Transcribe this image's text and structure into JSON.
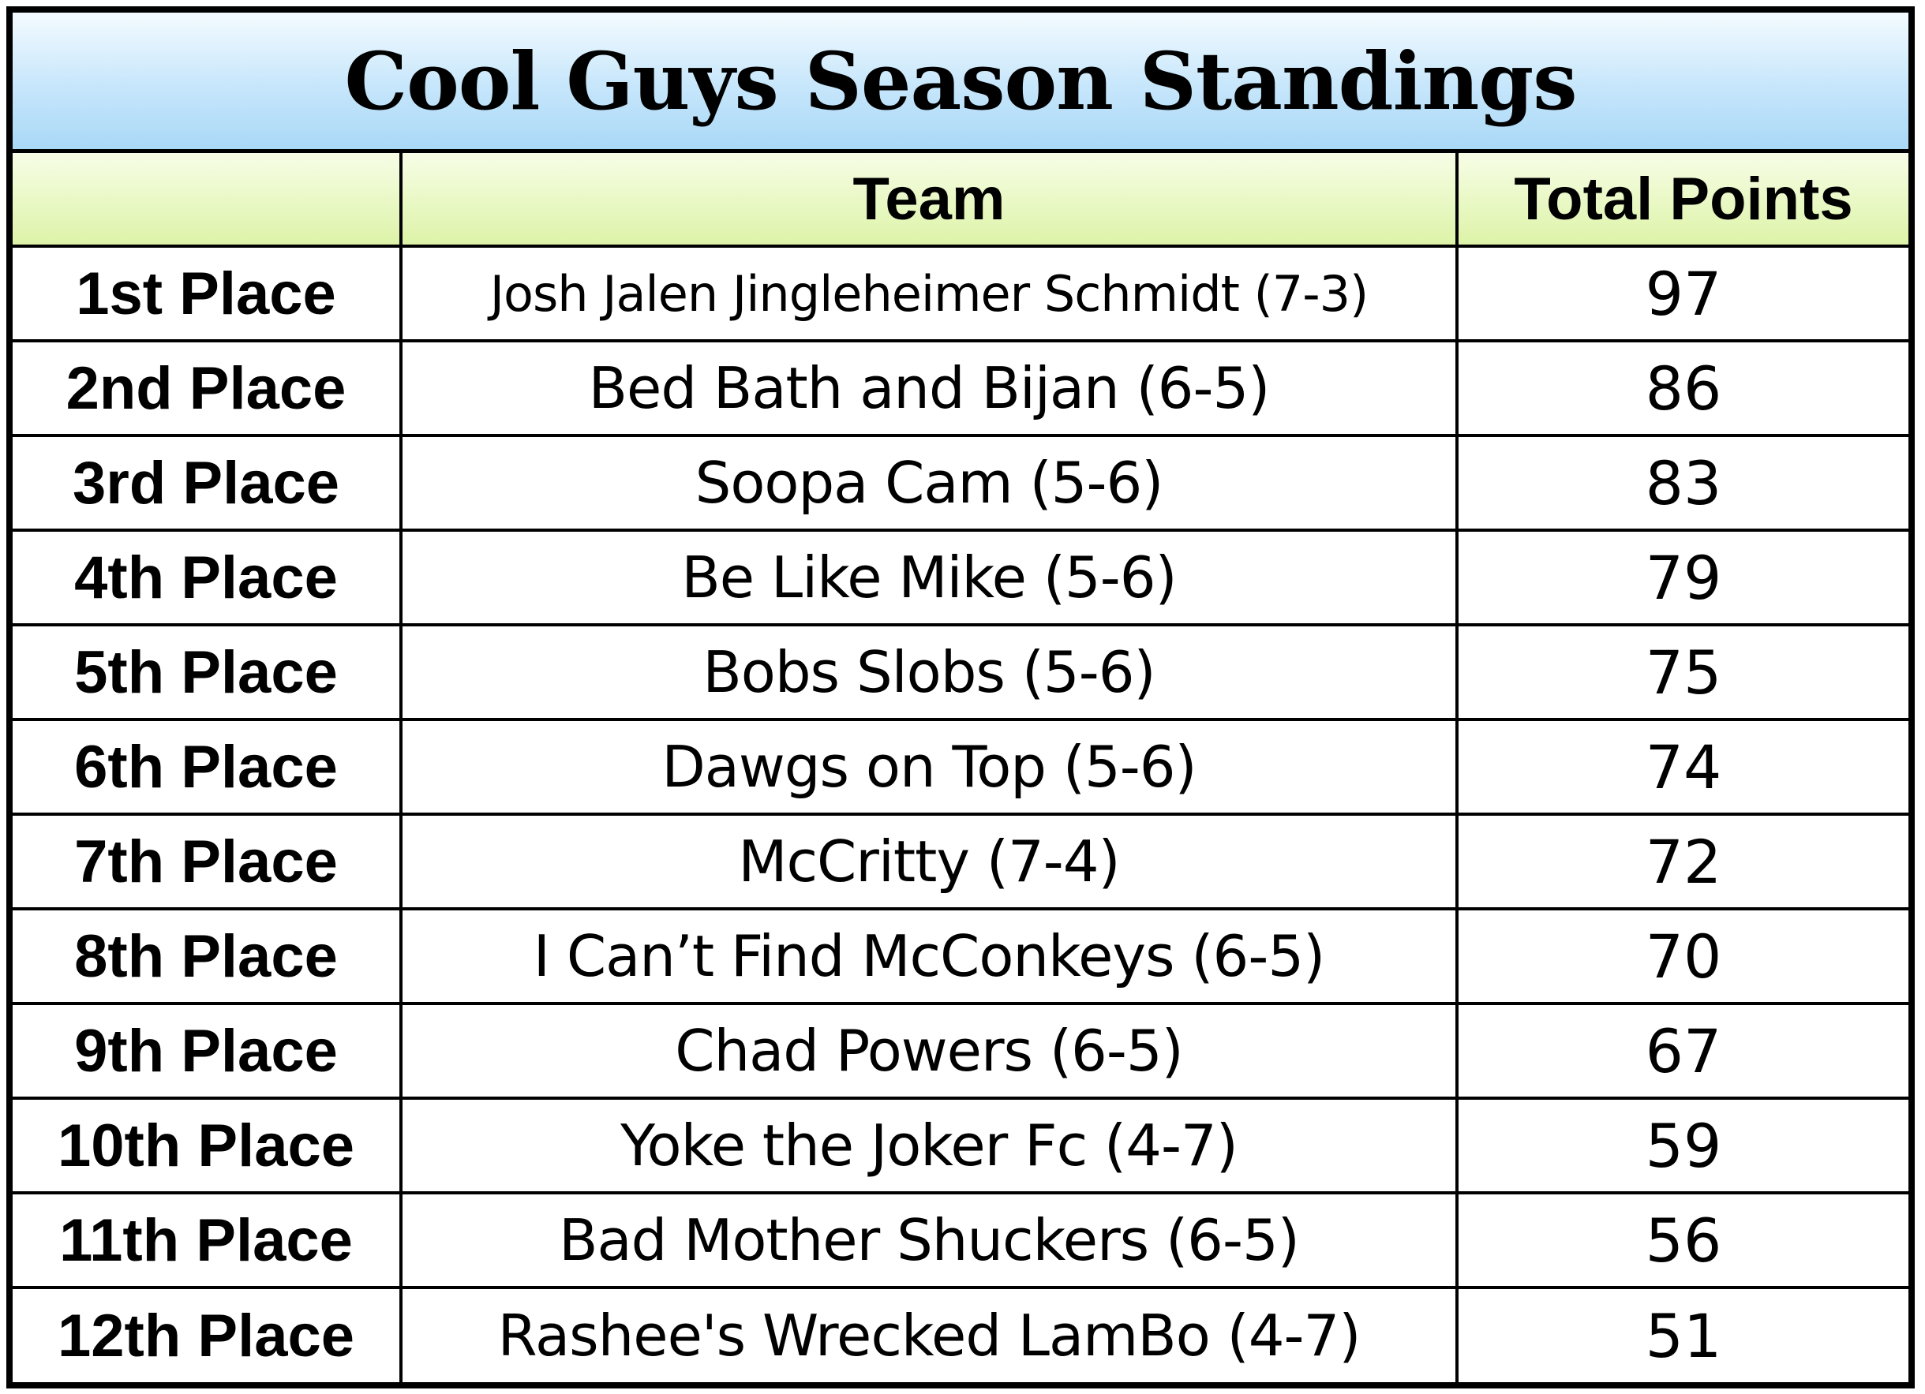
{
  "title": "Cool Guys Season Standings",
  "columns": {
    "place": "",
    "team": "Team",
    "points": "Total Points"
  },
  "rows": [
    {
      "place": "1st Place",
      "team": "Josh Jalen Jingleheimer Schmidt (7-3)",
      "points": "97"
    },
    {
      "place": "2nd Place",
      "team": "Bed Bath and Bijan (6-5)",
      "points": "86"
    },
    {
      "place": "3rd Place",
      "team": "Soopa Cam (5-6)",
      "points": "83"
    },
    {
      "place": "4th Place",
      "team": "Be Like Mike (5-6)",
      "points": "79"
    },
    {
      "place": "5th Place",
      "team": "Bobs Slobs (5-6)",
      "points": "75"
    },
    {
      "place": "6th Place",
      "team": "Dawgs on Top (5-6)",
      "points": "74"
    },
    {
      "place": "7th Place",
      "team": "McCritty (7-4)",
      "points": "72"
    },
    {
      "place": "8th Place",
      "team": "I Can’t Find McConkeys (6-5)",
      "points": "70"
    },
    {
      "place": "9th Place",
      "team": "Chad Powers (6-5)",
      "points": "67"
    },
    {
      "place": "10th Place",
      "team": "Yoke the Joker Fc (4-7)",
      "points": "59"
    },
    {
      "place": "11th Place",
      "team": "Bad Mother Shuckers (6-5)",
      "points": "56"
    },
    {
      "place": "12th Place",
      "team": "Rashee's Wrecked LamBo (4-7)",
      "points": "51"
    }
  ],
  "colors": {
    "title_band": "#a9d8f7",
    "header_band": "#ddf3a8",
    "border": "#000000"
  }
}
